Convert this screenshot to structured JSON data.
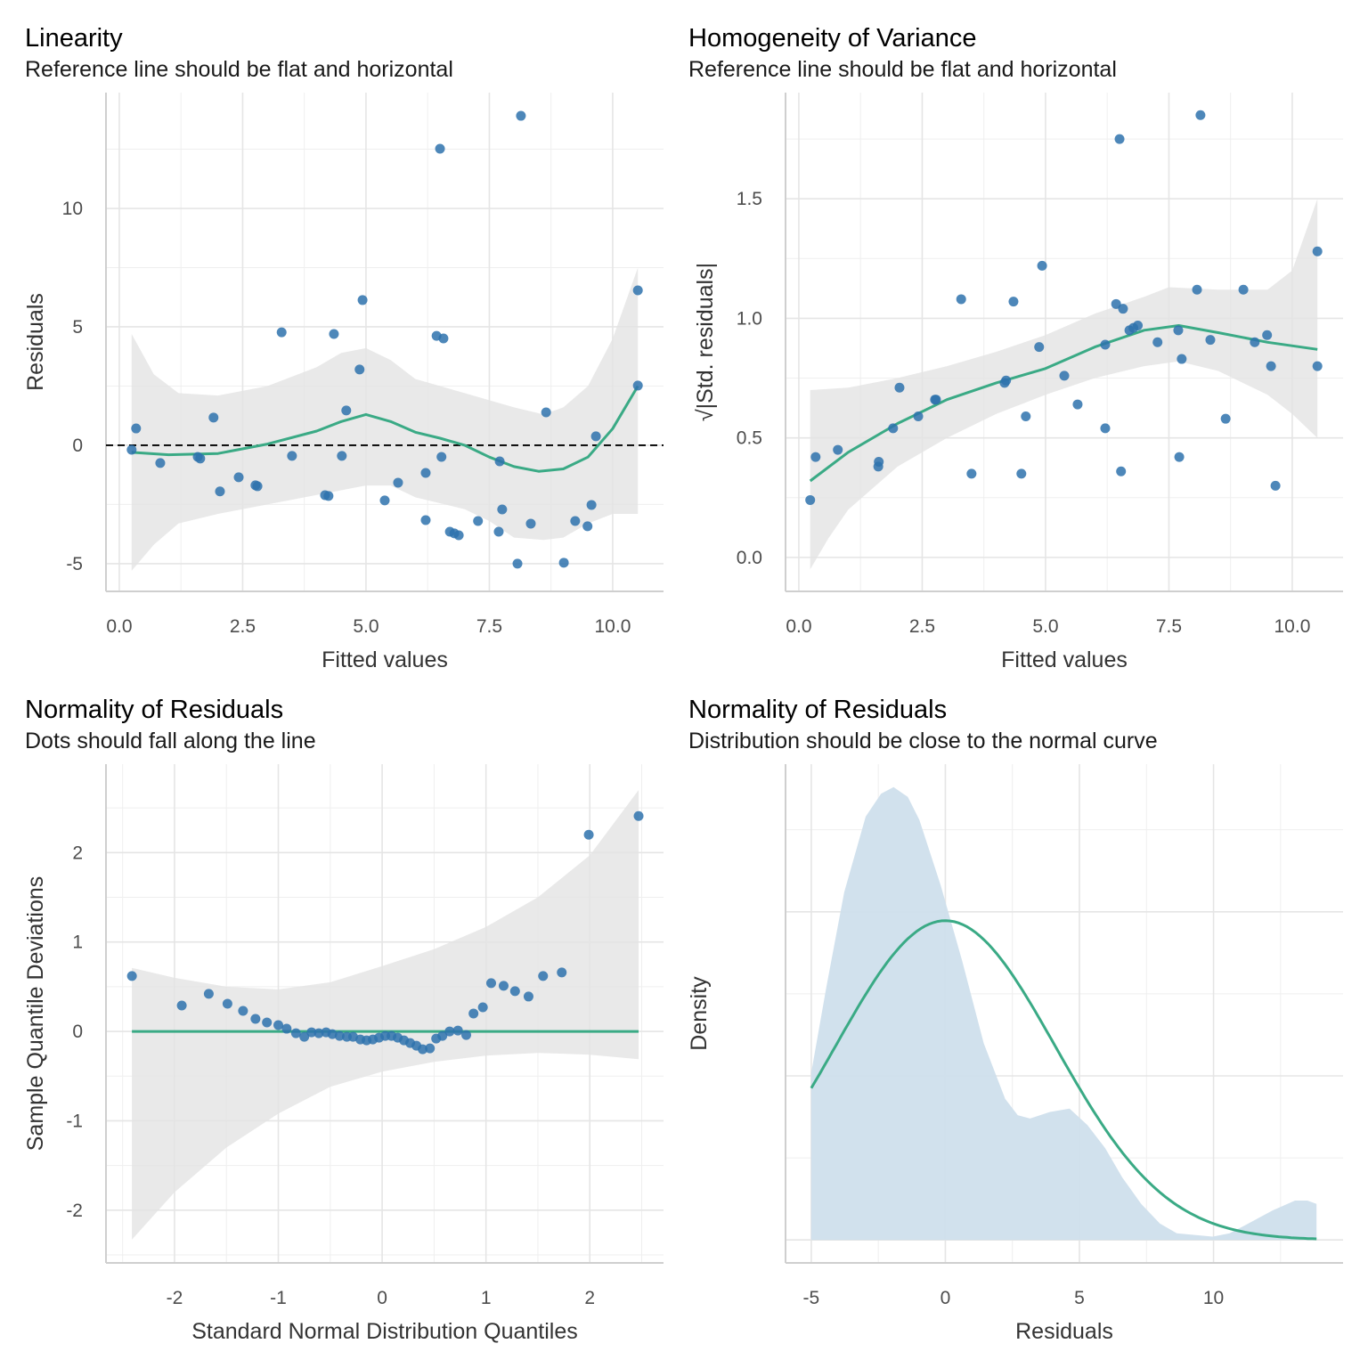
{
  "colors": {
    "points": "#2e72ad",
    "smooth": "#3aaa85",
    "band": "#e4e4e4",
    "density_fill": "#cfdfec",
    "reference": "#000000",
    "grid": "#e5e5e5"
  },
  "chart_data": [
    {
      "type": "scatter",
      "title": "Linearity",
      "subtitle": "Reference line should be flat and horizontal",
      "xlabel": "Fitted values",
      "ylabel": "Residuals",
      "xlim": [
        -0.27,
        11.03
      ],
      "ylim": [
        -6.17,
        14.89
      ],
      "xticks": [
        0,
        2.5,
        5,
        7.5,
        10
      ],
      "xtick_labels": [
        "0.0",
        "2.5",
        "5.0",
        "7.5",
        "10.0"
      ],
      "yticks": [
        -5,
        0,
        5,
        10
      ],
      "ytick_labels": [
        "-5",
        "0",
        "5",
        "10"
      ],
      "xminor": [
        1.25,
        3.75,
        6.25,
        8.75
      ],
      "yminor": [
        -2.5,
        2.5,
        7.5,
        12.5
      ],
      "grid": true,
      "reference_line": 0,
      "points": [
        [
          0.25,
          -0.19
        ],
        [
          0.34,
          0.71
        ],
        [
          0.83,
          -0.75
        ],
        [
          1.59,
          -0.49
        ],
        [
          1.64,
          -0.56
        ],
        [
          1.91,
          1.17
        ],
        [
          2.04,
          -1.95
        ],
        [
          2.42,
          -1.35
        ],
        [
          2.76,
          -1.69
        ],
        [
          2.8,
          -1.73
        ],
        [
          3.29,
          4.77
        ],
        [
          3.5,
          -0.45
        ],
        [
          4.17,
          -2.11
        ],
        [
          4.24,
          -2.14
        ],
        [
          4.35,
          4.7
        ],
        [
          4.6,
          1.47
        ],
        [
          4.51,
          -0.45
        ],
        [
          4.87,
          3.2
        ],
        [
          4.93,
          6.13
        ],
        [
          5.38,
          -2.33
        ],
        [
          5.65,
          -1.58
        ],
        [
          6.21,
          -1.17
        ],
        [
          6.21,
          -3.16
        ],
        [
          6.43,
          4.62
        ],
        [
          6.57,
          4.51
        ],
        [
          6.5,
          12.52
        ],
        [
          6.53,
          -0.49
        ],
        [
          6.7,
          -3.65
        ],
        [
          6.79,
          -3.72
        ],
        [
          6.88,
          -3.8
        ],
        [
          7.27,
          -3.2
        ],
        [
          7.69,
          -3.65
        ],
        [
          7.71,
          -0.68
        ],
        [
          7.76,
          -2.71
        ],
        [
          8.07,
          -5.0
        ],
        [
          8.14,
          13.91
        ],
        [
          8.34,
          -3.31
        ],
        [
          8.65,
          1.39
        ],
        [
          9.01,
          -4.96
        ],
        [
          9.24,
          -3.2
        ],
        [
          9.49,
          -3.42
        ],
        [
          9.57,
          -2.52
        ],
        [
          9.66,
          0.38
        ],
        [
          10.51,
          6.54
        ],
        [
          10.51,
          2.52
        ]
      ],
      "smooth": [
        [
          0.25,
          -0.3
        ],
        [
          1,
          -0.4
        ],
        [
          2,
          -0.35
        ],
        [
          3,
          0.05
        ],
        [
          4,
          0.6
        ],
        [
          4.5,
          1.0
        ],
        [
          5,
          1.3
        ],
        [
          5.5,
          1.0
        ],
        [
          6,
          0.55
        ],
        [
          6.5,
          0.3
        ],
        [
          7,
          0.0
        ],
        [
          7.5,
          -0.5
        ],
        [
          8,
          -0.9
        ],
        [
          8.5,
          -1.1
        ],
        [
          9,
          -1.0
        ],
        [
          9.5,
          -0.5
        ],
        [
          10,
          0.7
        ],
        [
          10.51,
          2.5
        ]
      ],
      "band_upper": [
        [
          0.25,
          4.7
        ],
        [
          0.7,
          3.0
        ],
        [
          1.2,
          2.2
        ],
        [
          2,
          2.1
        ],
        [
          3,
          2.5
        ],
        [
          4,
          3.3
        ],
        [
          4.5,
          3.9
        ],
        [
          5,
          4.1
        ],
        [
          5.5,
          3.6
        ],
        [
          6,
          2.8
        ],
        [
          7,
          2.2
        ],
        [
          8,
          1.6
        ],
        [
          8.6,
          1.3
        ],
        [
          9,
          1.6
        ],
        [
          9.5,
          2.5
        ],
        [
          10,
          4.5
        ],
        [
          10.51,
          7.5
        ]
      ],
      "band_lower": [
        [
          0.25,
          -5.3
        ],
        [
          0.7,
          -4.2
        ],
        [
          1.2,
          -3.3
        ],
        [
          2,
          -2.9
        ],
        [
          3,
          -2.5
        ],
        [
          4,
          -2.1
        ],
        [
          5,
          -1.7
        ],
        [
          5.5,
          -1.7
        ],
        [
          6,
          -2.2
        ],
        [
          7,
          -2.7
        ],
        [
          7.5,
          -3.2
        ],
        [
          8,
          -3.9
        ],
        [
          8.6,
          -4.0
        ],
        [
          9,
          -3.9
        ],
        [
          9.5,
          -3.3
        ],
        [
          10,
          -2.9
        ],
        [
          10.51,
          -2.9
        ]
      ]
    },
    {
      "type": "scatter",
      "title": "Homogeneity of Variance",
      "subtitle": "Reference line should be flat and horizontal",
      "xlabel": "Fitted values",
      "ylabel": "√|Std. residuals|",
      "xlim": [
        -0.27,
        11.03
      ],
      "ylim": [
        -0.142,
        1.944
      ],
      "xticks": [
        0,
        2.5,
        5,
        7.5,
        10
      ],
      "xtick_labels": [
        "0.0",
        "2.5",
        "5.0",
        "7.5",
        "10.0"
      ],
      "yticks": [
        0,
        0.5,
        1,
        1.5
      ],
      "ytick_labels": [
        "0.0",
        "0.5",
        "1.0",
        "1.5"
      ],
      "xminor": [
        1.25,
        3.75,
        6.25,
        8.75
      ],
      "yminor": [
        0.25,
        0.75,
        1.25,
        1.75
      ],
      "grid": true,
      "points": [
        [
          0.23,
          0.24
        ],
        [
          0.34,
          0.42
        ],
        [
          0.79,
          0.45
        ],
        [
          1.61,
          0.38
        ],
        [
          1.62,
          0.4
        ],
        [
          1.91,
          0.54
        ],
        [
          2.04,
          0.71
        ],
        [
          2.42,
          0.59
        ],
        [
          2.76,
          0.66
        ],
        [
          2.78,
          0.66
        ],
        [
          3.29,
          1.08
        ],
        [
          3.5,
          0.35
        ],
        [
          4.17,
          0.73
        ],
        [
          4.2,
          0.74
        ],
        [
          4.35,
          1.07
        ],
        [
          4.6,
          0.59
        ],
        [
          4.51,
          0.35
        ],
        [
          4.87,
          0.88
        ],
        [
          4.93,
          1.22
        ],
        [
          5.38,
          0.76
        ],
        [
          5.65,
          0.64
        ],
        [
          6.21,
          0.54
        ],
        [
          6.21,
          0.89
        ],
        [
          6.43,
          1.06
        ],
        [
          6.57,
          1.04
        ],
        [
          6.5,
          1.75
        ],
        [
          6.53,
          0.36
        ],
        [
          6.7,
          0.95
        ],
        [
          6.78,
          0.96
        ],
        [
          6.87,
          0.97
        ],
        [
          7.27,
          0.9
        ],
        [
          7.69,
          0.95
        ],
        [
          7.71,
          0.42
        ],
        [
          7.76,
          0.83
        ],
        [
          8.07,
          1.12
        ],
        [
          8.14,
          1.85
        ],
        [
          8.34,
          0.91
        ],
        [
          8.65,
          0.58
        ],
        [
          9.01,
          1.12
        ],
        [
          9.24,
          0.9
        ],
        [
          9.49,
          0.93
        ],
        [
          9.57,
          0.8
        ],
        [
          9.66,
          0.3
        ],
        [
          10.51,
          1.28
        ],
        [
          10.51,
          0.8
        ]
      ],
      "smooth": [
        [
          0.23,
          0.32
        ],
        [
          1,
          0.44
        ],
        [
          2,
          0.56
        ],
        [
          3,
          0.66
        ],
        [
          4,
          0.73
        ],
        [
          5,
          0.79
        ],
        [
          6,
          0.88
        ],
        [
          7,
          0.95
        ],
        [
          7.7,
          0.97
        ],
        [
          8.5,
          0.94
        ],
        [
          9.5,
          0.9
        ],
        [
          10.51,
          0.87
        ]
      ],
      "band_upper": [
        [
          0.23,
          0.7
        ],
        [
          1,
          0.71
        ],
        [
          2,
          0.75
        ],
        [
          3,
          0.8
        ],
        [
          4,
          0.86
        ],
        [
          5,
          0.93
        ],
        [
          6,
          1.02
        ],
        [
          7,
          1.09
        ],
        [
          7.5,
          1.13
        ],
        [
          8.5,
          1.12
        ],
        [
          9.5,
          1.12
        ],
        [
          10,
          1.2
        ],
        [
          10.51,
          1.5
        ]
      ],
      "band_lower": [
        [
          0.23,
          -0.05
        ],
        [
          0.6,
          0.08
        ],
        [
          1,
          0.2
        ],
        [
          2,
          0.38
        ],
        [
          3,
          0.5
        ],
        [
          4,
          0.6
        ],
        [
          5,
          0.68
        ],
        [
          6,
          0.75
        ],
        [
          7,
          0.8
        ],
        [
          7.7,
          0.82
        ],
        [
          8.5,
          0.78
        ],
        [
          9.5,
          0.68
        ],
        [
          10,
          0.6
        ],
        [
          10.51,
          0.5
        ]
      ]
    },
    {
      "type": "scatter",
      "title": "Normality of Residuals",
      "subtitle": "Dots should fall along the line",
      "xlabel": "Standard Normal Distribution Quantiles",
      "ylabel": "Sample Quantile Deviations",
      "xlim": [
        -2.66,
        2.71
      ],
      "ylim": [
        -2.59,
        2.99
      ],
      "xticks": [
        -2,
        -1,
        0,
        1,
        2
      ],
      "xtick_labels": [
        "-2",
        "-1",
        "0",
        "1",
        "2"
      ],
      "yticks": [
        -2,
        -1,
        0,
        1,
        2
      ],
      "ytick_labels": [
        "-2",
        "-1",
        "0",
        "1",
        "2"
      ],
      "xminor": [
        -2.5,
        -1.5,
        -0.5,
        0.5,
        1.5,
        2.5
      ],
      "yminor": [
        -2.5,
        -1.5,
        -0.5,
        0.5,
        1.5,
        2.5
      ],
      "grid": true,
      "points": [
        [
          -2.41,
          0.62
        ],
        [
          -1.93,
          0.29
        ],
        [
          -1.67,
          0.42
        ],
        [
          -1.49,
          0.31
        ],
        [
          -1.34,
          0.23
        ],
        [
          -1.22,
          0.14
        ],
        [
          -1.11,
          0.1
        ],
        [
          -1.0,
          0.07
        ],
        [
          -0.92,
          0.03
        ],
        [
          -0.83,
          -0.02
        ],
        [
          -0.75,
          -0.06
        ],
        [
          -0.68,
          -0.01
        ],
        [
          -0.61,
          -0.02
        ],
        [
          -0.54,
          -0.01
        ],
        [
          -0.48,
          -0.03
        ],
        [
          -0.41,
          -0.05
        ],
        [
          -0.34,
          -0.06
        ],
        [
          -0.28,
          -0.06
        ],
        [
          -0.21,
          -0.09
        ],
        [
          -0.15,
          -0.1
        ],
        [
          -0.09,
          -0.09
        ],
        [
          -0.03,
          -0.07
        ],
        [
          0.03,
          -0.05
        ],
        [
          0.09,
          -0.05
        ],
        [
          0.15,
          -0.07
        ],
        [
          0.21,
          -0.1
        ],
        [
          0.27,
          -0.13
        ],
        [
          0.33,
          -0.16
        ],
        [
          0.39,
          -0.2
        ],
        [
          0.46,
          -0.19
        ],
        [
          0.52,
          -0.08
        ],
        [
          0.58,
          -0.05
        ],
        [
          0.65,
          0.0
        ],
        [
          0.73,
          0.01
        ],
        [
          0.81,
          -0.04
        ],
        [
          0.88,
          0.2
        ],
        [
          0.97,
          0.27
        ],
        [
          1.05,
          0.54
        ],
        [
          1.17,
          0.51
        ],
        [
          1.28,
          0.45
        ],
        [
          1.41,
          0.39
        ],
        [
          1.55,
          0.62
        ],
        [
          1.73,
          0.66
        ],
        [
          1.99,
          2.2
        ],
        [
          2.47,
          2.41
        ]
      ],
      "smooth": [
        [
          -2.41,
          0
        ],
        [
          2.47,
          0
        ]
      ],
      "band_upper": [
        [
          -2.41,
          0.71
        ],
        [
          -2,
          0.6
        ],
        [
          -1.5,
          0.5
        ],
        [
          -1,
          0.47
        ],
        [
          -0.5,
          0.55
        ],
        [
          0,
          0.73
        ],
        [
          0.5,
          0.92
        ],
        [
          1,
          1.17
        ],
        [
          1.5,
          1.5
        ],
        [
          2,
          1.97
        ],
        [
          2.47,
          2.7
        ]
      ],
      "band_lower": [
        [
          -2.41,
          -2.33
        ],
        [
          -2,
          -1.8
        ],
        [
          -1.5,
          -1.3
        ],
        [
          -1,
          -0.92
        ],
        [
          -0.5,
          -0.62
        ],
        [
          0,
          -0.45
        ],
        [
          0.5,
          -0.34
        ],
        [
          1,
          -0.27
        ],
        [
          1.5,
          -0.24
        ],
        [
          2,
          -0.26
        ],
        [
          2.47,
          -0.31
        ]
      ]
    },
    {
      "type": "area",
      "title": "Normality of Residuals",
      "subtitle": "Distribution should be close to the normal curve",
      "xlabel": "Residuals",
      "ylabel": "Density",
      "xlim": [
        -5.96,
        14.83
      ],
      "ylim": [
        -0.007,
        0.145
      ],
      "xticks": [
        -5,
        0,
        5,
        10
      ],
      "xtick_labels": [
        "-5",
        "0",
        "5",
        "10"
      ],
      "yticks": [
        0,
        0.05,
        0.1
      ],
      "ytick_labels": [],
      "xminor": [
        -2.5,
        2.5,
        7.5,
        12.5
      ],
      "yminor": [
        0.025,
        0.075,
        0.125
      ],
      "grid": true,
      "density": [
        [
          -5,
          0.051
        ],
        [
          -4.44,
          0.077
        ],
        [
          -3.77,
          0.106
        ],
        [
          -2.97,
          0.129
        ],
        [
          -2.4,
          0.136
        ],
        [
          -1.93,
          0.138
        ],
        [
          -1.4,
          0.135
        ],
        [
          -0.97,
          0.128
        ],
        [
          -0.17,
          0.108
        ],
        [
          0.63,
          0.085
        ],
        [
          1.43,
          0.06
        ],
        [
          2.23,
          0.043
        ],
        [
          2.7,
          0.038
        ],
        [
          3.16,
          0.037
        ],
        [
          3.9,
          0.039
        ],
        [
          4.63,
          0.04
        ],
        [
          5.3,
          0.035
        ],
        [
          5.96,
          0.028
        ],
        [
          6.6,
          0.019
        ],
        [
          7.3,
          0.011
        ],
        [
          8.0,
          0.005
        ],
        [
          8.63,
          0.002
        ],
        [
          9.97,
          0.001
        ],
        [
          10.6,
          0.002
        ],
        [
          11.3,
          0.005
        ],
        [
          12.2,
          0.009
        ],
        [
          13.04,
          0.012
        ],
        [
          13.5,
          0.012
        ],
        [
          13.84,
          0.011
        ]
      ],
      "normal_curve": {
        "mean": 0,
        "sd": 4.1,
        "from": -5,
        "to": 13.84
      }
    }
  ]
}
